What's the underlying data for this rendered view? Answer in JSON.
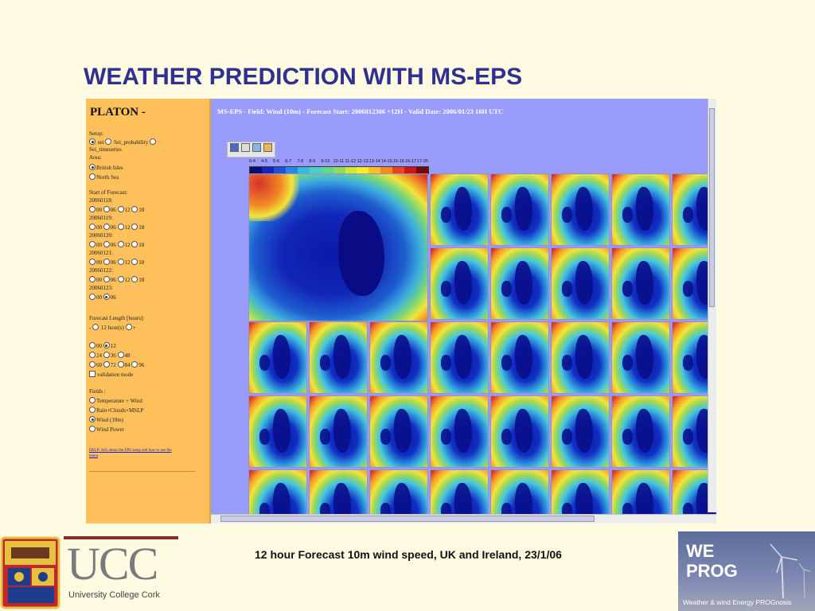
{
  "slide": {
    "title": "WEATHER PREDICTION WITH MS-EPS",
    "caption": "12 hour Forecast 10m wind speed, UK and Ireland, 23/1/06"
  },
  "platon": {
    "title": "PLATON -",
    "setup_label": "Setup:",
    "setup_options": [
      "sei",
      "Sei_probability",
      "Sei_timeseries"
    ],
    "area_label": "Area:",
    "area_options": [
      "British Isles",
      "North Sea"
    ],
    "start_label": "Start of Forecast:",
    "dates": [
      "20060118:",
      "20060119:",
      "20060120:",
      "20060121:",
      "20060122:",
      "20060123:"
    ],
    "hours": [
      "00",
      "06",
      "12",
      "18"
    ],
    "hours_last": [
      "00",
      "06"
    ],
    "length_label": "Forecast Length [hours]:",
    "length_row": [
      "-",
      "12 hour(s)",
      "+"
    ],
    "length_opts_1": [
      "00",
      "12"
    ],
    "length_opts_2": [
      "24",
      "36",
      "48"
    ],
    "length_opts_3": [
      "60",
      "72",
      "84",
      "96"
    ],
    "validation": "validation mode",
    "fields_label": "Fields :",
    "fields": [
      "Temperature + Wind",
      "Rain+Clouds+MSLP",
      "Wind (10m)",
      "Wind Power"
    ],
    "help_line1": "HELP: Info about the EPS setup and how to use the",
    "help_line2": "menu"
  },
  "viewer": {
    "header": "MS-EPS  -  Field: Wind (10m)  -  Forecast Start: 2006012306 +12H  -  Valid Date: 2006/01/23 18H UTC",
    "legend_labels": [
      "0-4",
      "4-5",
      "5-6",
      "6-7",
      "7-8",
      "8-9",
      "9-10",
      "10-11",
      "11-12",
      "12-13",
      "13-14",
      "14-15",
      "15-16",
      "16-17",
      "17-25"
    ],
    "legend_colors": [
      "#08106e",
      "#1428b8",
      "#2050d8",
      "#2a88e0",
      "#38b8e0",
      "#48d0c8",
      "#60d890",
      "#90dc58",
      "#d0e83c",
      "#f8ec30",
      "#f8c028",
      "#f48c24",
      "#e8461e",
      "#c81818",
      "#780808"
    ],
    "toolbar_icons": [
      "save-icon",
      "print-icon",
      "zoom-icon",
      "export-icon"
    ]
  },
  "logos": {
    "ucc_letters": "UCC",
    "ucc_name": "University College Cork",
    "weprog_line1": "WE",
    "weprog_line2": "PROG",
    "weprog_tagline": "Weather & wind Energy PROGnosis"
  }
}
